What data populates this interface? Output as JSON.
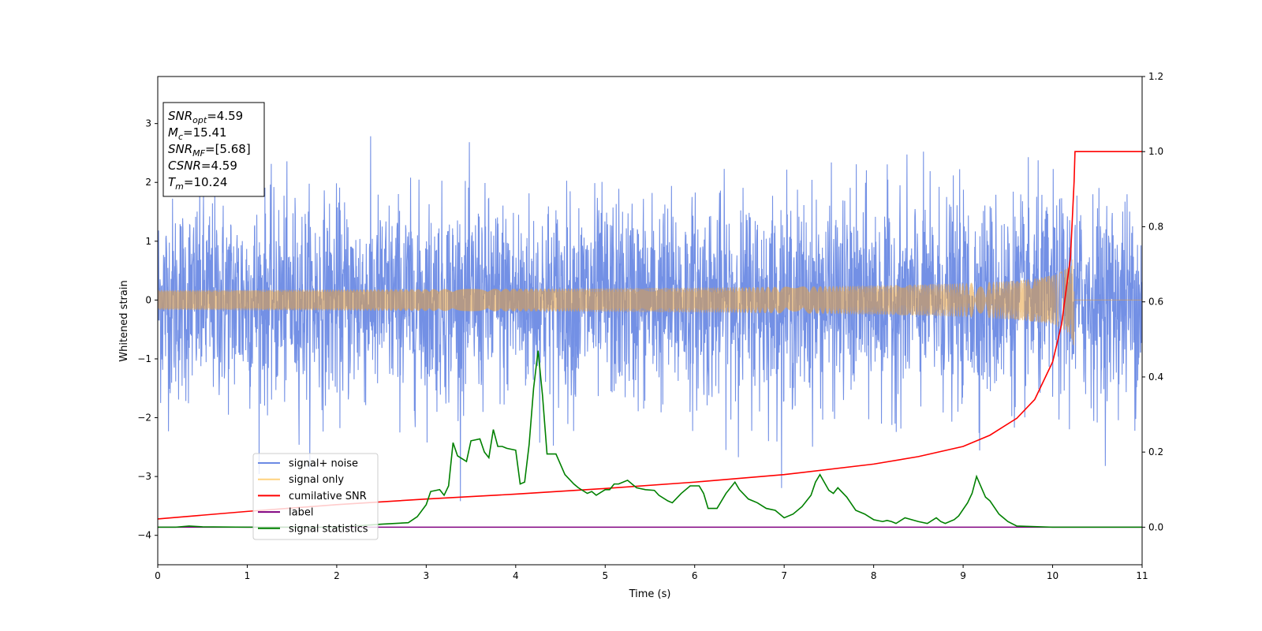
{
  "chart_data": {
    "type": "line",
    "xlabel": "Time (s)",
    "ylabel_left": "Whitened strain",
    "ylabel_right": "",
    "xlim": [
      0,
      11
    ],
    "ylim_left": [
      -4.5,
      3.8
    ],
    "ylim_right": [
      -0.1,
      1.2
    ],
    "x_ticks": [
      0,
      1,
      2,
      3,
      4,
      5,
      6,
      7,
      8,
      9,
      10,
      11
    ],
    "y_ticks_left": [
      -4,
      -3,
      -2,
      -1,
      0,
      1,
      2,
      3
    ],
    "y_ticks_right": [
      0.0,
      0.2,
      0.4,
      0.6,
      0.8,
      1.0,
      1.2
    ],
    "y_tick_labels_left": [
      "−4",
      "−3",
      "−2",
      "−1",
      "0",
      "1",
      "2",
      "3"
    ],
    "y_tick_labels_right": [
      "0.0",
      "0.2",
      "0.4",
      "0.6",
      "0.8",
      "1.0",
      "1.2"
    ],
    "legend_position": "lower-left",
    "legend": [
      {
        "label": "signal+ noise",
        "color": "#6c8ae4"
      },
      {
        "label": "signal only",
        "color": "#ffd27f"
      },
      {
        "label": "cumilative SNR",
        "color": "#ff0000"
      },
      {
        "label": "label",
        "color": "#800080"
      },
      {
        "label": "signal statistics",
        "color": "#008000"
      }
    ],
    "info_box": {
      "lines": [
        {
          "base": "SNR",
          "sub": "opt",
          "value": "=4.59"
        },
        {
          "base": "M",
          "sub": "c",
          "value": "=15.41"
        },
        {
          "base": "SNR",
          "sub": "MF",
          "value": "=[5.68]"
        },
        {
          "base": "CSNR",
          "sub": "",
          "value": "=4.59"
        },
        {
          "base": "T",
          "sub": "m",
          "value": "=10.24"
        }
      ]
    },
    "series": [
      {
        "name": "signal+ noise",
        "axis": "left",
        "color": "#6c8ae4",
        "kind": "noise",
        "x_range": [
          0,
          11
        ],
        "std": 0.85,
        "max_abs": 3.5
      },
      {
        "name": "signal only",
        "axis": "left",
        "color": "#ffd27f",
        "kind": "chirp",
        "x_range": [
          0,
          10.24
        ],
        "peak_time": 10.24,
        "peak_amplitude": 0.9
      },
      {
        "name": "cumilative SNR",
        "axis": "right",
        "color": "#ff0000",
        "x": [
          0,
          1,
          2,
          3,
          4,
          5,
          6,
          7,
          8,
          8.5,
          9,
          9.3,
          9.6,
          9.8,
          10.0,
          10.1,
          10.2,
          10.24,
          10.25,
          11
        ],
        "y": [
          0.022,
          0.042,
          0.06,
          0.075,
          0.088,
          0.103,
          0.12,
          0.14,
          0.168,
          0.188,
          0.215,
          0.245,
          0.29,
          0.34,
          0.44,
          0.54,
          0.72,
          0.92,
          1.0,
          1.0
        ]
      },
      {
        "name": "label",
        "axis": "right",
        "color": "#800080",
        "x": [
          0,
          11
        ],
        "y": [
          0,
          0
        ]
      },
      {
        "name": "signal statistics",
        "axis": "right",
        "color": "#008000",
        "x": [
          0,
          0.2,
          0.35,
          0.5,
          1.0,
          2.0,
          2.5,
          2.8,
          2.9,
          3.0,
          3.05,
          3.15,
          3.2,
          3.25,
          3.3,
          3.35,
          3.45,
          3.5,
          3.6,
          3.65,
          3.7,
          3.75,
          3.8,
          3.85,
          3.9,
          4.0,
          4.05,
          4.1,
          4.15,
          4.2,
          4.25,
          4.3,
          4.35,
          4.45,
          4.55,
          4.65,
          4.7,
          4.8,
          4.85,
          4.9,
          5.0,
          5.05,
          5.1,
          5.15,
          5.25,
          5.35,
          5.45,
          5.55,
          5.6,
          5.7,
          5.75,
          5.85,
          5.95,
          6.05,
          6.1,
          6.15,
          6.25,
          6.35,
          6.45,
          6.5,
          6.6,
          6.7,
          6.8,
          6.9,
          7.0,
          7.1,
          7.2,
          7.3,
          7.35,
          7.4,
          7.5,
          7.55,
          7.6,
          7.7,
          7.8,
          7.9,
          8.0,
          8.1,
          8.15,
          8.2,
          8.25,
          8.35,
          8.5,
          8.6,
          8.7,
          8.75,
          8.8,
          8.9,
          8.95,
          9.05,
          9.1,
          9.15,
          9.25,
          9.3,
          9.4,
          9.5,
          9.6,
          10.0,
          11.0
        ],
        "y": [
          0.0,
          0.0,
          0.003,
          0.001,
          0.0,
          0.0,
          0.008,
          0.012,
          0.028,
          0.06,
          0.095,
          0.1,
          0.085,
          0.11,
          0.225,
          0.19,
          0.175,
          0.23,
          0.235,
          0.2,
          0.185,
          0.26,
          0.215,
          0.215,
          0.21,
          0.205,
          0.115,
          0.12,
          0.22,
          0.37,
          0.47,
          0.35,
          0.195,
          0.195,
          0.14,
          0.115,
          0.105,
          0.09,
          0.095,
          0.085,
          0.1,
          0.1,
          0.115,
          0.115,
          0.125,
          0.105,
          0.1,
          0.098,
          0.085,
          0.07,
          0.065,
          0.09,
          0.11,
          0.11,
          0.09,
          0.05,
          0.05,
          0.09,
          0.12,
          0.1,
          0.075,
          0.065,
          0.05,
          0.045,
          0.025,
          0.035,
          0.055,
          0.085,
          0.12,
          0.14,
          0.098,
          0.09,
          0.105,
          0.08,
          0.045,
          0.035,
          0.02,
          0.015,
          0.018,
          0.015,
          0.01,
          0.025,
          0.015,
          0.01,
          0.025,
          0.015,
          0.01,
          0.02,
          0.03,
          0.065,
          0.09,
          0.135,
          0.08,
          0.07,
          0.035,
          0.015,
          0.003,
          0.0,
          0.0
        ]
      }
    ]
  }
}
